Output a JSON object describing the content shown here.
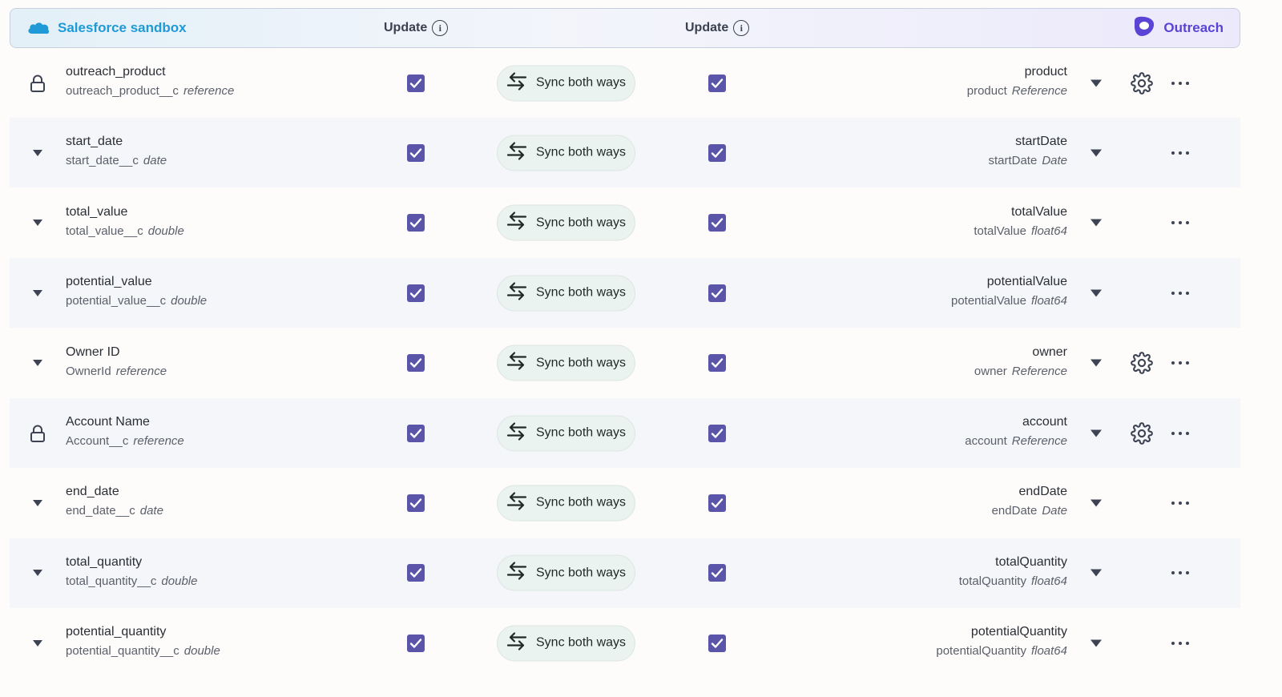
{
  "header": {
    "left_title": "Salesforce sandbox",
    "update_label_left": "Update",
    "update_label_right": "Update",
    "right_title": "Outreach",
    "logo_text": "salesforce"
  },
  "colors": {
    "salesforce": "#1f9ad6",
    "outreach": "#5a44d6",
    "checkbox": "#5a55a8",
    "sync_bg": "#ebf3f0"
  },
  "rows": [
    {
      "lead": "lock-icon",
      "src_name": "outreach_product",
      "src_field": "outreach_product__c",
      "src_type": "reference",
      "sync": "Sync both ways",
      "dst_name": "product",
      "dst_field": "product",
      "dst_type": "Reference",
      "settings": true,
      "source_update_checked": true,
      "target_update_checked": true
    },
    {
      "lead": "caret-down-icon",
      "src_name": "start_date",
      "src_field": "start_date__c",
      "src_type": "date",
      "sync": "Sync both ways",
      "dst_name": "startDate",
      "dst_field": "startDate",
      "dst_type": "Date",
      "settings": false,
      "source_update_checked": true,
      "target_update_checked": true
    },
    {
      "lead": "caret-down-icon",
      "src_name": "total_value",
      "src_field": "total_value__c",
      "src_type": "double",
      "sync": "Sync both ways",
      "dst_name": "totalValue",
      "dst_field": "totalValue",
      "dst_type": "float64",
      "settings": false,
      "source_update_checked": true,
      "target_update_checked": true
    },
    {
      "lead": "caret-down-icon",
      "src_name": "potential_value",
      "src_field": "potential_value__c",
      "src_type": "double",
      "sync": "Sync both ways",
      "dst_name": "potentialValue",
      "dst_field": "potentialValue",
      "dst_type": "float64",
      "settings": false,
      "source_update_checked": true,
      "target_update_checked": true
    },
    {
      "lead": "caret-down-icon",
      "src_name": "Owner ID",
      "src_field": "OwnerId",
      "src_type": "reference",
      "sync": "Sync both ways",
      "dst_name": "owner",
      "dst_field": "owner",
      "dst_type": "Reference",
      "settings": true,
      "source_update_checked": true,
      "target_update_checked": true
    },
    {
      "lead": "lock-icon",
      "src_name": "Account Name",
      "src_field": "Account__c",
      "src_type": "reference",
      "sync": "Sync both ways",
      "dst_name": "account",
      "dst_field": "account",
      "dst_type": "Reference",
      "settings": true,
      "source_update_checked": true,
      "target_update_checked": true
    },
    {
      "lead": "caret-down-icon",
      "src_name": "end_date",
      "src_field": "end_date__c",
      "src_type": "date",
      "sync": "Sync both ways",
      "dst_name": "endDate",
      "dst_field": "endDate",
      "dst_type": "Date",
      "settings": false,
      "source_update_checked": true,
      "target_update_checked": true
    },
    {
      "lead": "caret-down-icon",
      "src_name": "total_quantity",
      "src_field": "total_quantity__c",
      "src_type": "double",
      "sync": "Sync both ways",
      "dst_name": "totalQuantity",
      "dst_field": "totalQuantity",
      "dst_type": "float64",
      "settings": false,
      "source_update_checked": true,
      "target_update_checked": true
    },
    {
      "lead": "caret-down-icon",
      "src_name": "potential_quantity",
      "src_field": "potential_quantity__c",
      "src_type": "double",
      "sync": "Sync both ways",
      "dst_name": "potentialQuantity",
      "dst_field": "potentialQuantity",
      "dst_type": "float64",
      "settings": false,
      "source_update_checked": true,
      "target_update_checked": true
    }
  ]
}
